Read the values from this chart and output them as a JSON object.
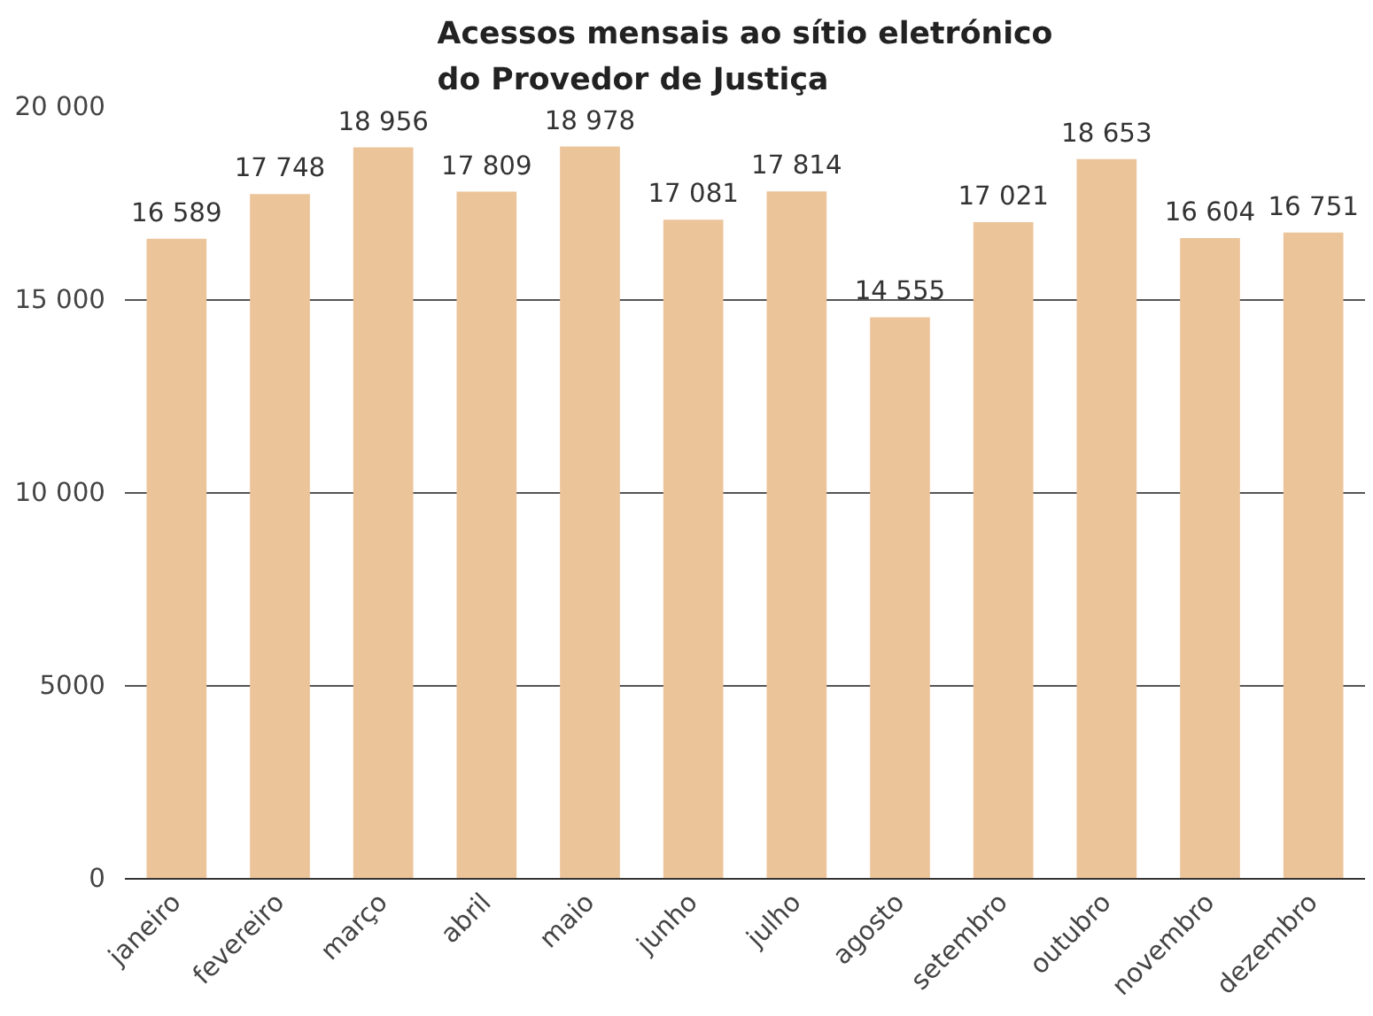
{
  "chart_data": {
    "type": "bar",
    "title": "Acessos mensais ao sítio eletrónico\ndo Provedor de Justiça",
    "categories": [
      "janeiro",
      "fevereiro",
      "março",
      "abril",
      "maio",
      "junho",
      "julho",
      "agosto",
      "setembro",
      "outubro",
      "novembro",
      "dezembro"
    ],
    "values": [
      16589,
      17748,
      18956,
      17809,
      18978,
      17081,
      17814,
      14555,
      17021,
      18653,
      16604,
      16751
    ],
    "value_labels": [
      "16 589",
      "17 748",
      "18 956",
      "17 809",
      "18 978",
      "17 081",
      "17 814",
      "14 555",
      "17 021",
      "18 653",
      "16 604",
      "16 751"
    ],
    "color": "#ecc49a",
    "ylim": [
      0,
      20000
    ],
    "yticks": [
      0,
      {
        "value": 5000,
        "label": "5000"
      },
      {
        "value": 10000,
        "label": "10 000"
      },
      {
        "value": 15000,
        "label": "15 000"
      },
      {
        "value": 20000,
        "label": "20 000"
      }
    ],
    "grid": "y"
  }
}
